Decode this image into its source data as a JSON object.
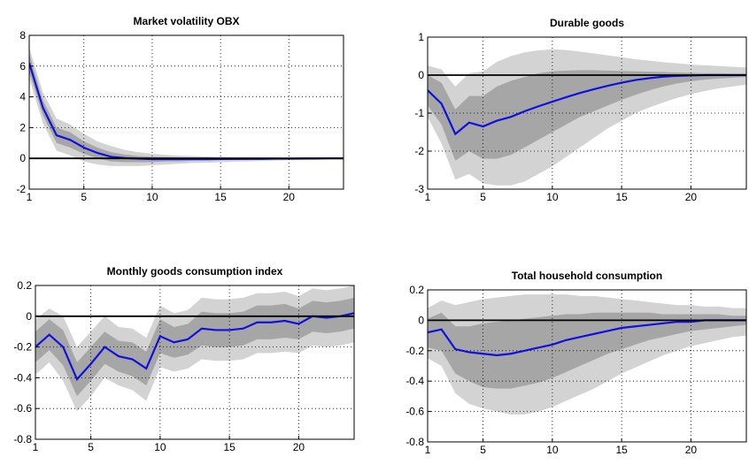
{
  "chart_data": [
    {
      "type": "line",
      "title": "Market volatility OBX",
      "x": [
        1,
        2,
        3,
        4,
        5,
        6,
        7,
        8,
        9,
        10,
        11,
        12,
        13,
        14,
        15,
        16,
        17,
        18,
        19,
        20,
        21,
        22,
        23,
        24
      ],
      "xlim": [
        1,
        24
      ],
      "xticks": [
        1,
        5,
        10,
        15,
        20
      ],
      "ylim": [
        -2,
        8
      ],
      "yticks": [
        -2,
        0,
        2,
        4,
        6,
        8
      ],
      "grid": true,
      "reference_line": 0,
      "bands": [
        {
          "color": "#d3d3d3",
          "lower": [
            5.2,
            2.3,
            0.5,
            0.2,
            -0.2,
            -0.4,
            -0.5,
            -0.5,
            -0.5,
            -0.45,
            -0.4,
            -0.35,
            -0.3,
            -0.28,
            -0.25,
            -0.22,
            -0.2,
            -0.17,
            -0.15,
            -0.12,
            -0.1,
            -0.08,
            -0.07,
            -0.06
          ],
          "upper": [
            7.2,
            4.3,
            2.6,
            2.2,
            1.6,
            1.1,
            0.8,
            0.55,
            0.4,
            0.3,
            0.22,
            0.18,
            0.15,
            0.12,
            0.1,
            0.09,
            0.08,
            0.07,
            0.06,
            0.05,
            0.05,
            0.04,
            0.04,
            0.03
          ]
        },
        {
          "color": "#a6a6a6",
          "lower": [
            5.6,
            2.8,
            1.0,
            0.7,
            0.3,
            0,
            -0.2,
            -0.25,
            -0.25,
            -0.25,
            -0.2,
            -0.2,
            -0.15,
            -0.15,
            -0.12,
            -0.1,
            -0.1,
            -0.08,
            -0.06,
            -0.05,
            -0.04,
            -0.03,
            -0.02,
            -0.02
          ],
          "upper": [
            6.8,
            3.8,
            2.0,
            1.7,
            1.1,
            0.7,
            0.4,
            0.25,
            0.15,
            0.1,
            0.08,
            0.06,
            0.05,
            0.05,
            0.04,
            0.03,
            0.03,
            0.03,
            0.02,
            0.02,
            0.02,
            0.02,
            0.01,
            0.01
          ]
        }
      ],
      "series": [
        {
          "color": "#1010e0",
          "values": [
            6.2,
            3.3,
            1.5,
            1.2,
            0.7,
            0.35,
            0.1,
            0.02,
            -0.02,
            -0.05,
            -0.05,
            -0.05,
            -0.05,
            -0.05,
            -0.04,
            -0.04,
            -0.03,
            -0.03,
            -0.02,
            -0.02,
            -0.01,
            -0.01,
            0,
            0
          ]
        }
      ]
    },
    {
      "type": "line",
      "title": "Durable goods",
      "x": [
        1,
        2,
        3,
        4,
        5,
        6,
        7,
        8,
        9,
        10,
        11,
        12,
        13,
        14,
        15,
        16,
        17,
        18,
        19,
        20,
        21,
        22,
        23,
        24
      ],
      "xlim": [
        1,
        24
      ],
      "xticks": [
        1,
        5,
        10,
        15,
        20
      ],
      "ylim": [
        -3,
        1
      ],
      "yticks": [
        -3,
        -2,
        -1,
        0,
        1
      ],
      "grid": true,
      "reference_line": 0,
      "bands": [
        {
          "color": "#d3d3d3",
          "lower": [
            -1.1,
            -1.8,
            -2.75,
            -2.6,
            -2.85,
            -2.9,
            -2.9,
            -2.8,
            -2.6,
            -2.4,
            -2.15,
            -1.9,
            -1.65,
            -1.4,
            -1.2,
            -1.0,
            -0.85,
            -0.72,
            -0.6,
            -0.5,
            -0.42,
            -0.35,
            -0.3,
            -0.25
          ],
          "upper": [
            0.25,
            0.15,
            -0.3,
            0.05,
            0.1,
            0.35,
            0.5,
            0.6,
            0.65,
            0.68,
            0.66,
            0.62,
            0.57,
            0.52,
            0.47,
            0.42,
            0.38,
            0.34,
            0.31,
            0.28,
            0.26,
            0.24,
            0.22,
            0.2
          ]
        },
        {
          "color": "#a6a6a6",
          "lower": [
            -0.8,
            -1.3,
            -2.25,
            -2.0,
            -2.2,
            -2.2,
            -2.1,
            -1.9,
            -1.7,
            -1.5,
            -1.3,
            -1.1,
            -0.95,
            -0.8,
            -0.65,
            -0.52,
            -0.4,
            -0.3,
            -0.22,
            -0.16,
            -0.12,
            -0.09,
            -0.07,
            -0.05
          ],
          "upper": [
            0,
            -0.2,
            -0.9,
            -0.55,
            -0.55,
            -0.3,
            -0.15,
            -0.05,
            0.05,
            0.1,
            0.12,
            0.13,
            0.13,
            0.12,
            0.11,
            0.1,
            0.09,
            0.08,
            0.07,
            0.06,
            0.05,
            0.05,
            0.04,
            0.04
          ]
        }
      ],
      "series": [
        {
          "color": "#1010e0",
          "values": [
            -0.4,
            -0.75,
            -1.55,
            -1.25,
            -1.35,
            -1.2,
            -1.1,
            -0.95,
            -0.82,
            -0.7,
            -0.58,
            -0.47,
            -0.37,
            -0.28,
            -0.2,
            -0.13,
            -0.08,
            -0.04,
            -0.02,
            -0.01,
            0,
            0,
            0,
            0
          ]
        }
      ]
    },
    {
      "type": "line",
      "title": "Monthly goods consumption index",
      "x": [
        1,
        2,
        3,
        4,
        5,
        6,
        7,
        8,
        9,
        10,
        11,
        12,
        13,
        14,
        15,
        16,
        17,
        18,
        19,
        20,
        21,
        22,
        23,
        24
      ],
      "xlim": [
        1,
        24
      ],
      "xticks": [
        1,
        5,
        10,
        15,
        20
      ],
      "ylim": [
        -0.8,
        0.2
      ],
      "yticks": [
        -0.8,
        -0.6,
        -0.4,
        -0.2,
        0,
        0.2
      ],
      "grid": true,
      "reference_line": 0,
      "bands": [
        {
          "color": "#d3d3d3",
          "lower": [
            -0.38,
            -0.3,
            -0.42,
            -0.62,
            -0.52,
            -0.4,
            -0.45,
            -0.48,
            -0.55,
            -0.33,
            -0.36,
            -0.34,
            -0.28,
            -0.29,
            -0.29,
            -0.28,
            -0.24,
            -0.24,
            -0.23,
            -0.24,
            -0.19,
            -0.2,
            -0.19,
            -0.17
          ],
          "upper": [
            -0.02,
            0.05,
            0,
            -0.2,
            -0.1,
            0,
            -0.07,
            -0.08,
            -0.14,
            0.07,
            0.02,
            0.04,
            0.12,
            0.11,
            0.11,
            0.12,
            0.15,
            0.15,
            0.16,
            0.13,
            0.18,
            0.17,
            0.18,
            0.2
          ]
        },
        {
          "color": "#a6a6a6",
          "lower": [
            -0.3,
            -0.22,
            -0.32,
            -0.52,
            -0.42,
            -0.31,
            -0.36,
            -0.39,
            -0.45,
            -0.24,
            -0.27,
            -0.25,
            -0.19,
            -0.2,
            -0.2,
            -0.19,
            -0.15,
            -0.15,
            -0.14,
            -0.15,
            -0.1,
            -0.11,
            -0.1,
            -0.08
          ],
          "upper": [
            -0.1,
            -0.02,
            -0.09,
            -0.3,
            -0.2,
            -0.1,
            -0.16,
            -0.17,
            -0.23,
            -0.02,
            -0.07,
            -0.05,
            0.03,
            0.02,
            0.02,
            0.03,
            0.07,
            0.07,
            0.08,
            0.05,
            0.1,
            0.09,
            0.1,
            0.12
          ]
        }
      ],
      "series": [
        {
          "color": "#1010e0",
          "values": [
            -0.2,
            -0.12,
            -0.2,
            -0.41,
            -0.31,
            -0.2,
            -0.26,
            -0.28,
            -0.34,
            -0.13,
            -0.17,
            -0.15,
            -0.08,
            -0.09,
            -0.09,
            -0.08,
            -0.04,
            -0.04,
            -0.03,
            -0.05,
            0,
            -0.01,
            0,
            0.02
          ]
        }
      ]
    },
    {
      "type": "line",
      "title": "Total household consumption",
      "x": [
        1,
        2,
        3,
        4,
        5,
        6,
        7,
        8,
        9,
        10,
        11,
        12,
        13,
        14,
        15,
        16,
        17,
        18,
        19,
        20,
        21,
        22,
        23,
        24
      ],
      "xlim": [
        1,
        24
      ],
      "xticks": [
        1,
        5,
        10,
        15,
        20
      ],
      "ylim": [
        -0.8,
        0.2
      ],
      "yticks": [
        -0.8,
        -0.6,
        -0.4,
        -0.2,
        0,
        0.2
      ],
      "grid": true,
      "reference_line": 0,
      "bands": [
        {
          "color": "#d3d3d3",
          "lower": [
            -0.25,
            -0.3,
            -0.48,
            -0.55,
            -0.58,
            -0.6,
            -0.62,
            -0.62,
            -0.6,
            -0.57,
            -0.53,
            -0.49,
            -0.45,
            -0.4,
            -0.35,
            -0.31,
            -0.27,
            -0.23,
            -0.2,
            -0.17,
            -0.15,
            -0.13,
            -0.11,
            -0.1
          ],
          "upper": [
            0.08,
            0.13,
            0.1,
            0.12,
            0.14,
            0.15,
            0.16,
            0.17,
            0.17,
            0.17,
            0.17,
            0.16,
            0.16,
            0.15,
            0.14,
            0.13,
            0.12,
            0.11,
            0.1,
            0.1,
            0.09,
            0.09,
            0.08,
            0.08
          ]
        },
        {
          "color": "#a6a6a6",
          "lower": [
            -0.18,
            -0.2,
            -0.35,
            -0.4,
            -0.44,
            -0.45,
            -0.45,
            -0.43,
            -0.41,
            -0.38,
            -0.34,
            -0.3,
            -0.26,
            -0.22,
            -0.19,
            -0.16,
            -0.13,
            -0.11,
            -0.09,
            -0.07,
            -0.06,
            -0.05,
            -0.04,
            -0.03
          ],
          "upper": [
            0.01,
            0.05,
            -0.04,
            -0.04,
            -0.02,
            -0.01,
            0,
            0.01,
            0.02,
            0.03,
            0.04,
            0.04,
            0.05,
            0.05,
            0.05,
            0.05,
            0.05,
            0.04,
            0.04,
            0.04,
            0.04,
            0.04,
            0.03,
            0.03
          ]
        }
      ],
      "series": [
        {
          "color": "#1010e0",
          "values": [
            -0.08,
            -0.06,
            -0.19,
            -0.21,
            -0.22,
            -0.23,
            -0.22,
            -0.2,
            -0.18,
            -0.16,
            -0.13,
            -0.11,
            -0.09,
            -0.07,
            -0.05,
            -0.04,
            -0.03,
            -0.02,
            -0.01,
            -0.01,
            0,
            0,
            0,
            0
          ]
        }
      ]
    }
  ]
}
